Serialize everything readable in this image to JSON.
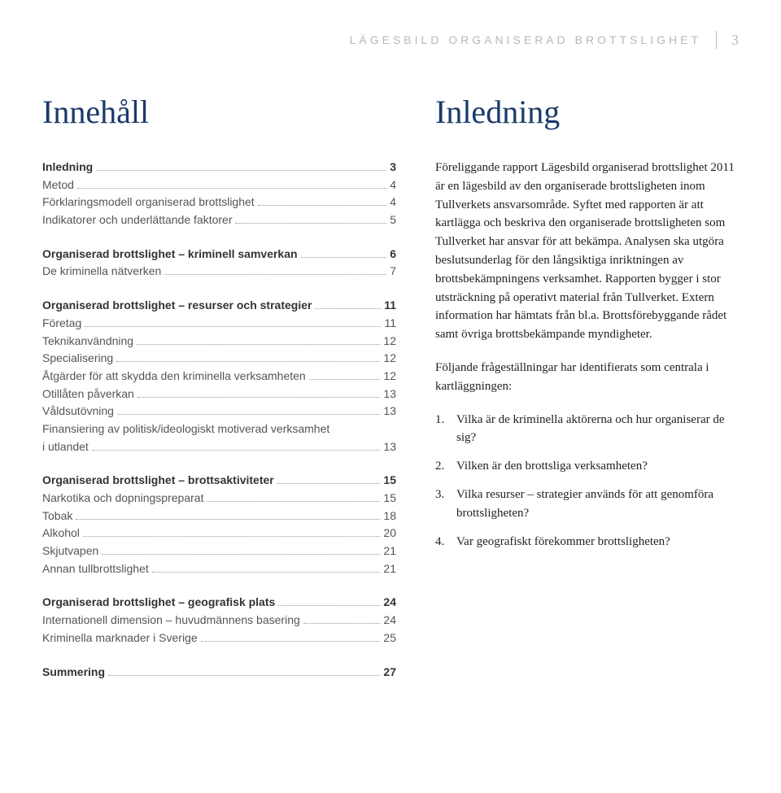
{
  "header": {
    "running_title": "LÄGESBILD ORGANISERAD BROTTSLIGHET",
    "page_number": "3"
  },
  "left": {
    "heading": "Innehåll",
    "sections": [
      {
        "rows": [
          {
            "label": "Inledning",
            "page": "3",
            "bold": true
          },
          {
            "label": "Metod",
            "page": "4"
          },
          {
            "label": "Förklaringsmodell organiserad brottslighet",
            "page": "4"
          },
          {
            "label": "Indikatorer och underlättande faktorer",
            "page": "5"
          }
        ]
      },
      {
        "rows": [
          {
            "label": "Organiserad brottslighet – kriminell samverkan",
            "page": "6",
            "bold": true
          },
          {
            "label": "De kriminella nätverken",
            "page": "7"
          }
        ]
      },
      {
        "rows": [
          {
            "label": "Organiserad brottslighet – resurser och strategier",
            "page": "11",
            "bold": true
          },
          {
            "label": "Företag",
            "page": "11"
          },
          {
            "label": "Teknikanvändning",
            "page": "12"
          },
          {
            "label": "Specialisering",
            "page": "12"
          },
          {
            "label": "Åtgärder för att skydda den kriminella verksamheten",
            "page": "12"
          },
          {
            "label": "Otillåten påverkan",
            "page": "13"
          },
          {
            "label": "Våldsutövning",
            "page": "13"
          },
          {
            "label_pre": "Finansiering av politisk/ideologiskt motiverad verksamhet",
            "label": "i utlandet",
            "page": "13",
            "wrap": true
          }
        ]
      },
      {
        "rows": [
          {
            "label": "Organiserad brottslighet – brottsaktiviteter",
            "page": "15",
            "bold": true
          },
          {
            "label": "Narkotika och dopningspreparat",
            "page": "15"
          },
          {
            "label": "Tobak",
            "page": "18"
          },
          {
            "label": "Alkohol",
            "page": "20"
          },
          {
            "label": "Skjutvapen",
            "page": "21"
          },
          {
            "label": "Annan tullbrottslighet",
            "page": "21"
          }
        ]
      },
      {
        "rows": [
          {
            "label": "Organiserad brottslighet – geografisk plats",
            "page": "24",
            "bold": true
          },
          {
            "label": "Internationell dimension – huvudmännens basering",
            "page": "24"
          },
          {
            "label": "Kriminella marknader i Sverige",
            "page": "25"
          }
        ]
      },
      {
        "rows": [
          {
            "label": "Summering",
            "page": "27",
            "bold": true
          }
        ]
      }
    ]
  },
  "right": {
    "heading": "Inledning",
    "para1": "Föreliggande rapport Lägesbild organiserad brottslighet 2011 är en lägesbild av den organiserade brottsligheten inom Tullverkets ansvarsområde. Syftet med rapporten är att kartlägga och beskriva den organiserade brottsligheten som Tullverket har ansvar för att bekämpa. Analysen ska utgöra beslutsunderlag för den långsiktiga inriktningen av brottsbekämpningens verksamhet. Rapporten bygger i stor utsträckning på operativt material från Tullverket. Extern information har hämtats från bl.a. Brottsförebyggande rådet samt övriga brottsbekämpande myndigheter.",
    "para2": "Följande frågeställningar har identifierats som centrala i kartläggningen:",
    "questions": [
      {
        "n": "1.",
        "t": "Vilka är de kriminella aktörerna och hur organiserar de sig?"
      },
      {
        "n": "2.",
        "t": "Vilken är den brottsliga verksamheten?"
      },
      {
        "n": "3.",
        "t": "Vilka resurser – strategier används för att genomföra brottsligheten?"
      },
      {
        "n": "4.",
        "t": "Var geografiskt förekommer brottsligheten?"
      }
    ]
  }
}
